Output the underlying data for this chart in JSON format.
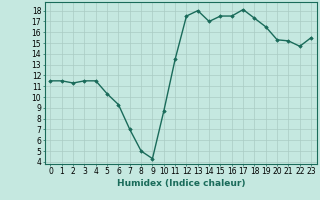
{
  "x": [
    0,
    1,
    2,
    3,
    4,
    5,
    6,
    7,
    8,
    9,
    10,
    11,
    12,
    13,
    14,
    15,
    16,
    17,
    18,
    19,
    20,
    21,
    22,
    23
  ],
  "y": [
    11.5,
    11.5,
    11.3,
    11.5,
    11.5,
    10.3,
    9.3,
    7.0,
    5.0,
    4.3,
    8.7,
    13.5,
    17.5,
    18.0,
    17.0,
    17.5,
    17.5,
    18.1,
    17.3,
    16.5,
    15.3,
    15.2,
    14.7,
    15.5
  ],
  "xlabel": "Humidex (Indice chaleur)",
  "xlim": [
    -0.5,
    23.5
  ],
  "ylim": [
    3.8,
    18.8
  ],
  "yticks": [
    4,
    5,
    6,
    7,
    8,
    9,
    10,
    11,
    12,
    13,
    14,
    15,
    16,
    17,
    18
  ],
  "xticks": [
    0,
    1,
    2,
    3,
    4,
    5,
    6,
    7,
    8,
    9,
    10,
    11,
    12,
    13,
    14,
    15,
    16,
    17,
    18,
    19,
    20,
    21,
    22,
    23
  ],
  "line_color": "#1a6b5a",
  "marker": "D",
  "marker_size": 1.8,
  "bg_color": "#c5e8e0",
  "grid_color": "#aaccc4",
  "tick_label_fontsize": 5.5,
  "xlabel_fontsize": 6.5,
  "line_width": 1.0,
  "spine_color": "#1a6b5a"
}
